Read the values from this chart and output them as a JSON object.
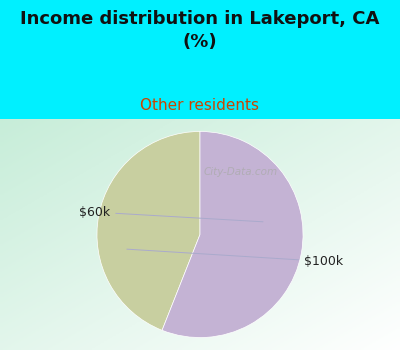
{
  "title": "Income distribution in Lakeport, CA\n(%)",
  "subtitle": "Other residents",
  "slices": [
    {
      "label": "$60k",
      "value": 44,
      "color": "#c8cfa0"
    },
    {
      "label": "$100k",
      "value": 56,
      "color": "#c4b3d4"
    }
  ],
  "bg_color_cyan": "#00f0ff",
  "title_color": "#111111",
  "title_fontsize": 13,
  "subtitle_fontsize": 11,
  "subtitle_color": "#cc4400",
  "label_fontsize": 9,
  "watermark": "City-Data.com",
  "startangle": 90,
  "chart_bg_top_left": "#d6ece0",
  "chart_bg_bottom_right": "#ffffff"
}
